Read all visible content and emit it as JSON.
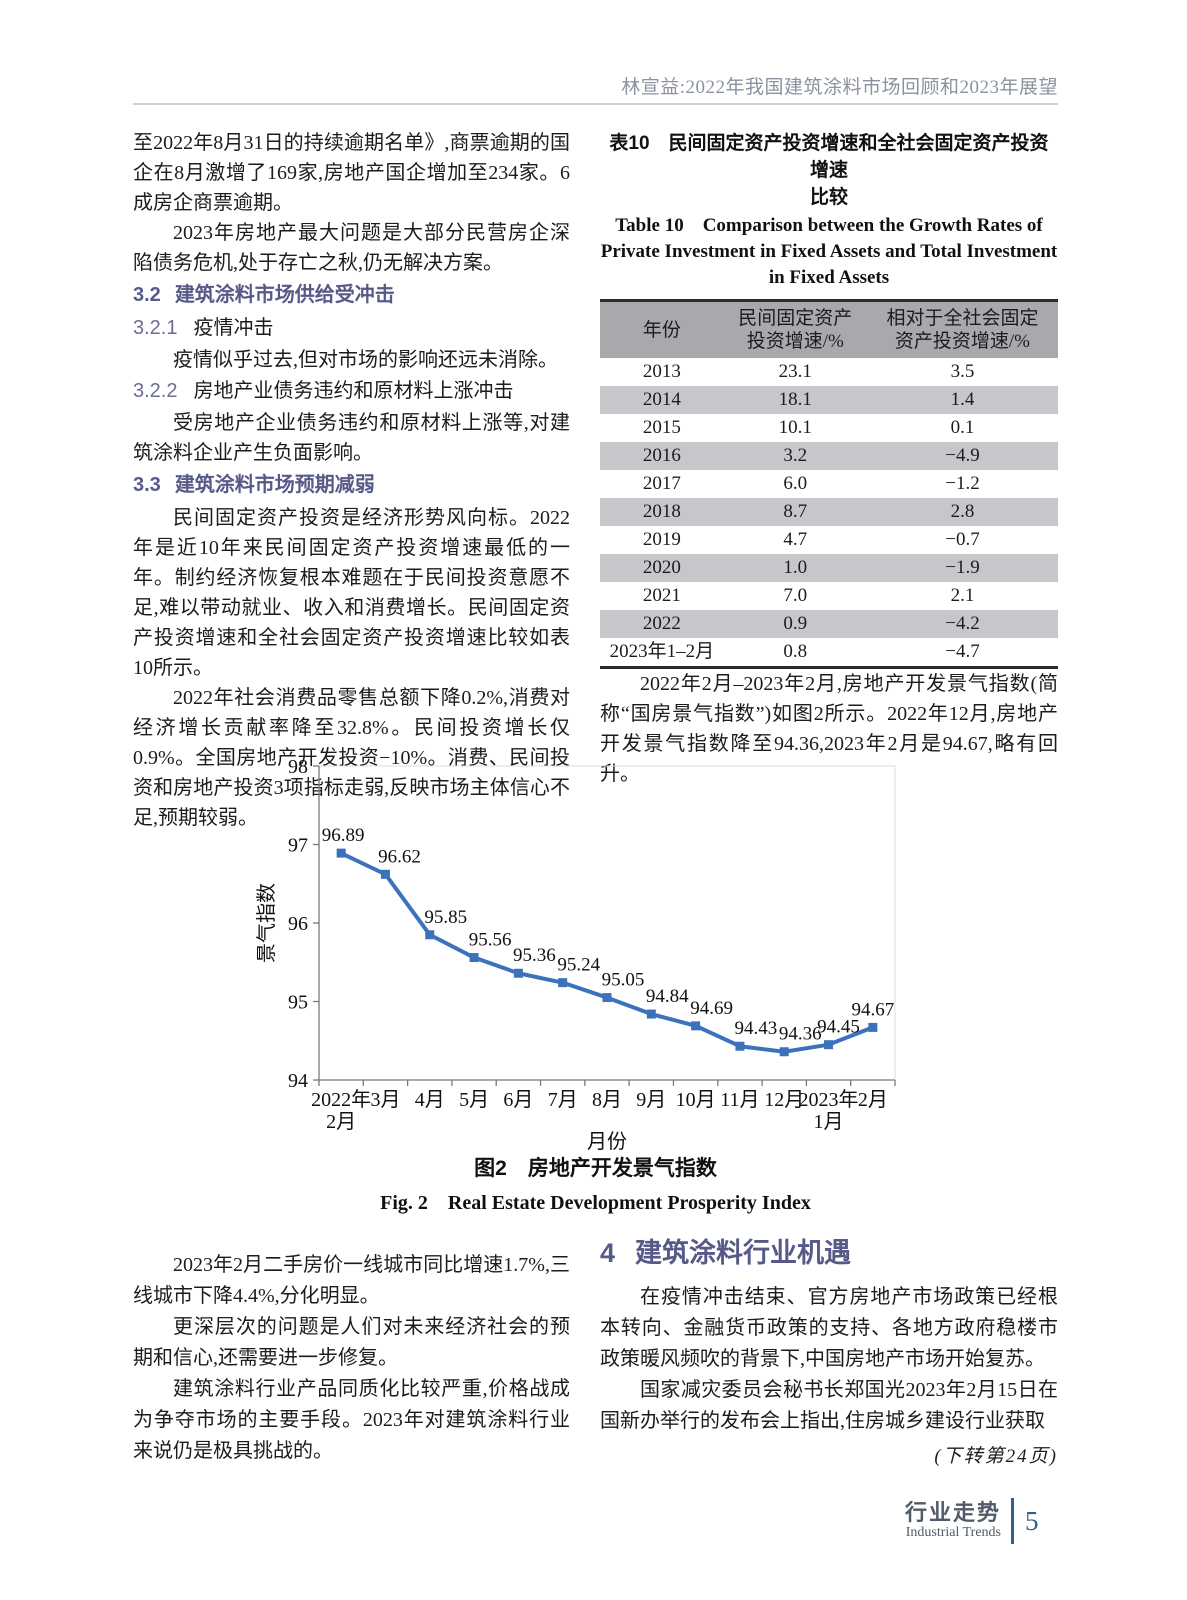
{
  "header": {
    "running_title": "林宣益:2022年我国建筑涂料市场回顾和2023年展望"
  },
  "left": {
    "p1": "至2022年8月31日的持续逾期名单》,商票逾期的国企在8月激增了169家,房地产国企增加至234家。6成房企商票逾期。",
    "p2": "2023年房地产最大问题是大部分民营房企深陷债务危机,处于存亡之秋,仍无解决方案。",
    "h32": {
      "num": "3.2",
      "title": "建筑涂料市场供给受冲击"
    },
    "h321": {
      "num": "3.2.1",
      "title": "疫情冲击"
    },
    "p3": "疫情似乎过去,但对市场的影响还远未消除。",
    "h322": {
      "num": "3.2.2",
      "title": "房地产业债务违约和原材料上涨冲击"
    },
    "p4": "受房地产企业债务违约和原材料上涨等,对建筑涂料企业产生负面影响。",
    "h33": {
      "num": "3.3",
      "title": "建筑涂料市场预期减弱"
    },
    "p5": "民间固定资产投资是经济形势风向标。2022年是近10年来民间固定资产投资增速最低的一年。制约经济恢复根本难题在于民间投资意愿不足,难以带动就业、收入和消费增长。民间固定资产投资增速和全社会固定资产投资增速比较如表10所示。",
    "p6": "2022年社会消费品零售总额下降0.2%,消费对经济增长贡献率降至32.8%。民间投资增长仅0.9%。全国房地产开发投资−10%。消费、民间投资和房地产投资3项指标走弱,反映市场主体信心不足,预期较弱。"
  },
  "table10": {
    "caption_cn": "表10　民间固定资产投资增速和全社会固定资产投资增速\n比较",
    "caption_en": "Table 10　Comparison between the Growth Rates of Private Investment in Fixed Assets and Total Investment in Fixed Assets",
    "columns": [
      "年份",
      "民间固定资产\n投资增速/%",
      "相对于全社会固定\n资产投资增速/%"
    ],
    "rows": [
      [
        "2013",
        "23.1",
        "3.5"
      ],
      [
        "2014",
        "18.1",
        "1.4"
      ],
      [
        "2015",
        "10.1",
        "0.1"
      ],
      [
        "2016",
        "3.2",
        "−4.9"
      ],
      [
        "2017",
        "6.0",
        "−1.2"
      ],
      [
        "2018",
        "8.7",
        "2.8"
      ],
      [
        "2019",
        "4.7",
        "−0.7"
      ],
      [
        "2020",
        "1.0",
        "−1.9"
      ],
      [
        "2021",
        "7.0",
        "2.1"
      ],
      [
        "2022",
        "0.9",
        "−4.2"
      ],
      [
        "2023年1–2月",
        "0.8",
        "−4.7"
      ]
    ]
  },
  "right": {
    "p1": "2022年2月–2023年2月,房地产开发景气指数(简称“国房景气指数”)如图2所示。2022年12月,房地产开发景气指数降至94.36,2023年2月是94.67,略有回升。"
  },
  "chart_data": {
    "type": "line",
    "title": "图2 房地产开发景气指数",
    "xlabel": "月份",
    "ylabel": "景气指数",
    "ylim": [
      94,
      98
    ],
    "yticks": [
      94,
      95,
      96,
      97,
      98
    ],
    "categories": [
      "2022年\n2月",
      "3月",
      "4月",
      "5月",
      "6月",
      "7月",
      "8月",
      "9月",
      "10月",
      "11月",
      "12月",
      "2023年\n1月",
      "2月"
    ],
    "values": [
      96.89,
      96.62,
      95.85,
      95.56,
      95.36,
      95.24,
      95.05,
      94.84,
      94.69,
      94.43,
      94.36,
      94.45,
      94.67
    ],
    "series_color": "#3c72bb",
    "marker": "square",
    "grid": false,
    "legend": "none",
    "data_labels": true
  },
  "figure2": {
    "caption_cn": "图2　房地产开发景气指数",
    "caption_en": "Fig. 2　Real Estate Development Prosperity Index"
  },
  "bottom_left": {
    "p1": "2023年2月二手房价一线城市同比增速1.7%,三线城市下降4.4%,分化明显。",
    "p2": "更深层次的问题是人们对未来经济社会的预期和信心,还需要进一步修复。",
    "p3": "建筑涂料行业产品同质化比较严重,价格战成为争夺市场的主要手段。2023年对建筑涂料行业来说仍是极具挑战的。"
  },
  "bottom_right": {
    "heading": {
      "num": "4",
      "title": "建筑涂料行业机遇"
    },
    "p1": "在疫情冲击结束、官方房地产市场政策已经根本转向、金融货币政策的支持、各地方政府稳楼市政策暖风频吹的背景下,中国房地产市场开始复苏。",
    "p2": "国家减灾委员会秘书长郑国光2023年2月15日在国新办举行的发布会上指出,住房城乡建设行业获取",
    "continued": "(下转第24页)"
  },
  "footer": {
    "cn": "行业走势",
    "en": "Industrial Trends",
    "page": "5"
  },
  "colors": {
    "heading_accent": "#575a88",
    "chart_line": "#3c72bb",
    "table_header_bg": "#a7a9ad",
    "table_alt_row_bg": "#c6c7cb",
    "footer_accent": "#2e6092",
    "running_title": "#8b92a0"
  }
}
